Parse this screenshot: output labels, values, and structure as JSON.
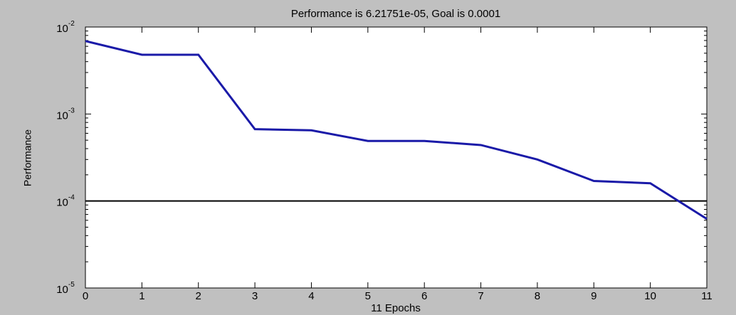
{
  "chart_data": {
    "type": "line",
    "title": "Performance is 6.21751e-05, Goal is 0.0001",
    "xlabel": "11 Epochs",
    "ylabel": "Performance",
    "x": [
      0,
      1,
      2,
      3,
      4,
      5,
      6,
      7,
      8,
      9,
      10,
      11
    ],
    "series": [
      {
        "name": "Performance",
        "color": "#1a1aa8",
        "values": [
          0.0069,
          0.0048,
          0.0048,
          0.00067,
          0.00065,
          0.00049,
          0.00049,
          0.00044,
          0.0003,
          0.00017,
          0.00016,
          6.21751e-05
        ]
      }
    ],
    "goal": 0.0001,
    "goal_color": "#000000",
    "xlim": [
      0,
      11
    ],
    "xticks": [
      0,
      1,
      2,
      3,
      4,
      5,
      6,
      7,
      8,
      9,
      10,
      11
    ],
    "ylim": [
      1e-05,
      0.01
    ],
    "yticks": [
      {
        "value": 1e-05,
        "label": "10",
        "exponent": "-5"
      },
      {
        "value": 0.0001,
        "label": "10",
        "exponent": "-4"
      },
      {
        "value": 0.001,
        "label": "10",
        "exponent": "-3"
      },
      {
        "value": 0.01,
        "label": "10",
        "exponent": "-2"
      }
    ],
    "log_y": true,
    "grid": false
  }
}
